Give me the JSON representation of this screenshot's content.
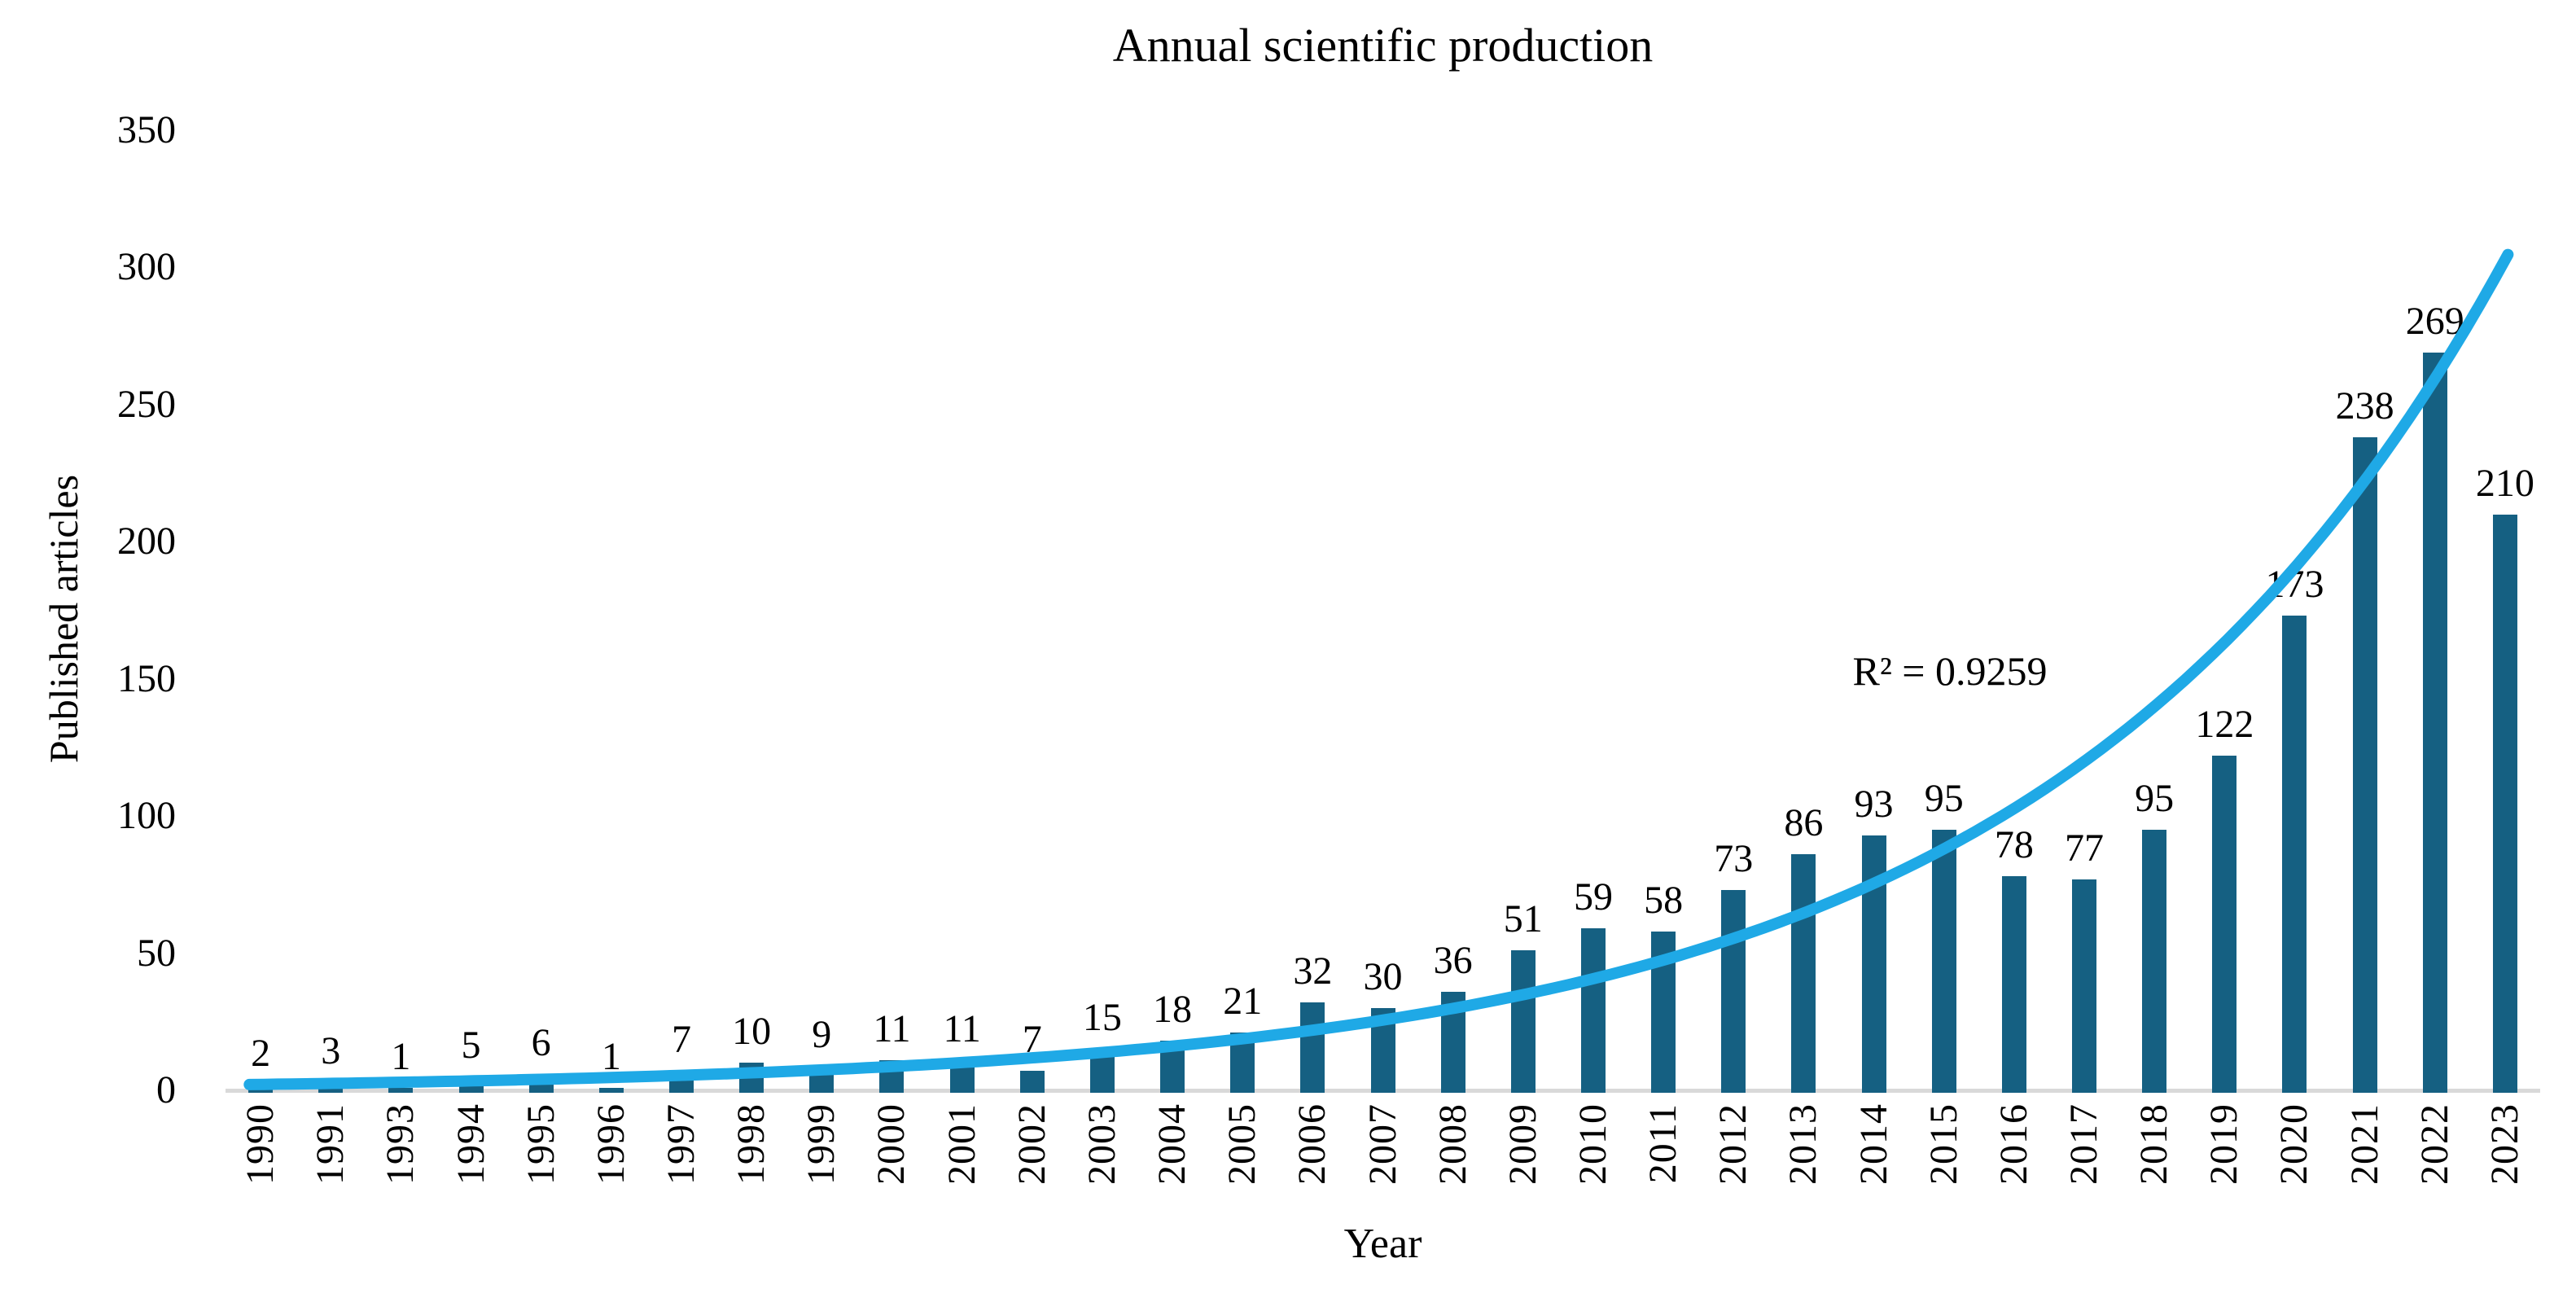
{
  "colors": {
    "bar": "#156082",
    "trendline": "#1FA9E6",
    "axis_line": "#d9d9d9",
    "text": "#000000",
    "background": "#ffffff"
  },
  "chart_data": {
    "type": "bar",
    "title": "Annual scientific production",
    "xlabel": "Year",
    "ylabel": "Published articles",
    "categories": [
      "1990",
      "1991",
      "1993",
      "1994",
      "1995",
      "1996",
      "1997",
      "1998",
      "1999",
      "2000",
      "2001",
      "2002",
      "2003",
      "2004",
      "2005",
      "2006",
      "2007",
      "2008",
      "2009",
      "2010",
      "2011",
      "2012",
      "2013",
      "2014",
      "2015",
      "2016",
      "2017",
      "2018",
      "2019",
      "2020",
      "2021",
      "2022",
      "2023"
    ],
    "values": [
      2,
      3,
      1,
      5,
      6,
      1,
      7,
      10,
      9,
      11,
      11,
      7,
      15,
      18,
      21,
      32,
      30,
      36,
      51,
      59,
      58,
      73,
      86,
      93,
      95,
      78,
      77,
      95,
      122,
      173,
      238,
      269,
      210
    ],
    "ylim": [
      0,
      350
    ],
    "yticks": [
      0,
      50,
      100,
      150,
      200,
      250,
      300,
      350
    ],
    "grid": false,
    "legend": "none",
    "bar_data_labels": true,
    "missing_years_note": "1992 absent from axis",
    "trendline": {
      "type": "exponential",
      "r_squared": 0.9259,
      "label": "R² = 0.9259"
    }
  }
}
